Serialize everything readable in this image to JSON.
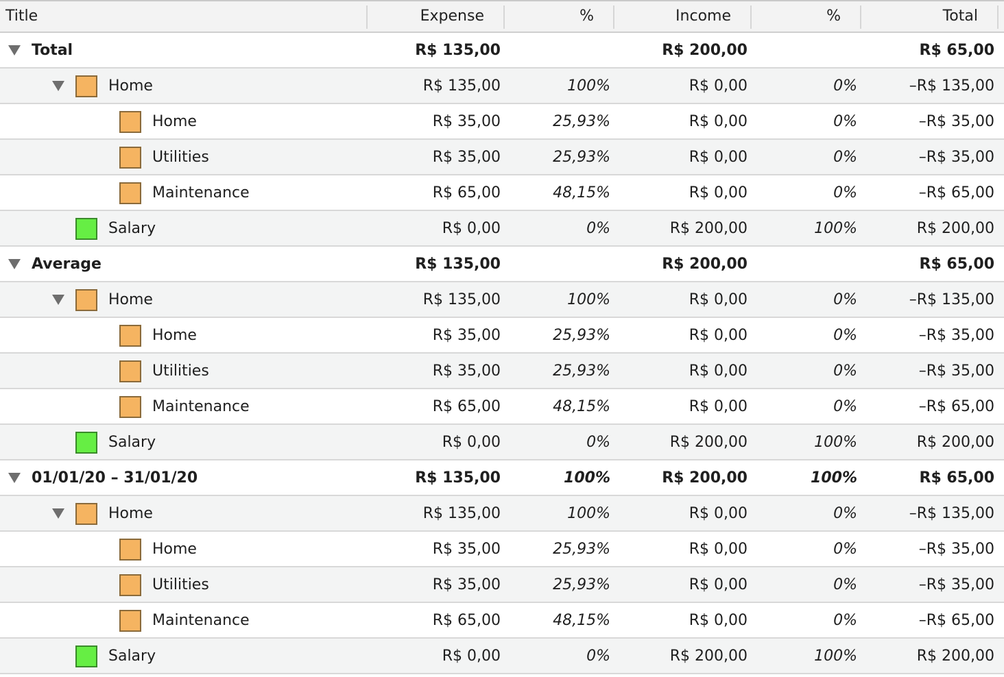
{
  "colors": {
    "home": "#f5b461",
    "salary": "#66ee44"
  },
  "header": {
    "title": "Title",
    "expense": "Expense",
    "expense_pct": "%",
    "income": "Income",
    "income_pct": "%",
    "total": "Total"
  },
  "rows": [
    {
      "level": 0,
      "expandable": true,
      "title": "Total",
      "expense": "R$ 135,00",
      "expense_pct": "",
      "income": "R$ 200,00",
      "income_pct": "",
      "total": "R$ 65,00"
    },
    {
      "level": 1,
      "expandable": true,
      "swatch": "home",
      "title": "Home",
      "expense": "R$ 135,00",
      "expense_pct": "100%",
      "income": "R$ 0,00",
      "income_pct": "0%",
      "total": "–R$ 135,00"
    },
    {
      "level": 2,
      "expandable": false,
      "swatch": "home",
      "title": "Home",
      "expense": "R$ 35,00",
      "expense_pct": "25,93%",
      "income": "R$ 0,00",
      "income_pct": "0%",
      "total": "–R$ 35,00"
    },
    {
      "level": 2,
      "expandable": false,
      "swatch": "home",
      "title": "Utilities",
      "expense": "R$ 35,00",
      "expense_pct": "25,93%",
      "income": "R$ 0,00",
      "income_pct": "0%",
      "total": "–R$ 35,00"
    },
    {
      "level": 2,
      "expandable": false,
      "swatch": "home",
      "title": "Maintenance",
      "expense": "R$ 65,00",
      "expense_pct": "48,15%",
      "income": "R$ 0,00",
      "income_pct": "0%",
      "total": "–R$ 65,00"
    },
    {
      "level": 1,
      "expandable": false,
      "swatch": "salary",
      "title": "Salary",
      "expense": "R$ 0,00",
      "expense_pct": "0%",
      "income": "R$ 200,00",
      "income_pct": "100%",
      "total": "R$ 200,00"
    },
    {
      "level": 0,
      "expandable": true,
      "title": "Average",
      "expense": "R$ 135,00",
      "expense_pct": "",
      "income": "R$ 200,00",
      "income_pct": "",
      "total": "R$ 65,00"
    },
    {
      "level": 1,
      "expandable": true,
      "swatch": "home",
      "title": "Home",
      "expense": "R$ 135,00",
      "expense_pct": "100%",
      "income": "R$ 0,00",
      "income_pct": "0%",
      "total": "–R$ 135,00"
    },
    {
      "level": 2,
      "expandable": false,
      "swatch": "home",
      "title": "Home",
      "expense": "R$ 35,00",
      "expense_pct": "25,93%",
      "income": "R$ 0,00",
      "income_pct": "0%",
      "total": "–R$ 35,00"
    },
    {
      "level": 2,
      "expandable": false,
      "swatch": "home",
      "title": "Utilities",
      "expense": "R$ 35,00",
      "expense_pct": "25,93%",
      "income": "R$ 0,00",
      "income_pct": "0%",
      "total": "–R$ 35,00"
    },
    {
      "level": 2,
      "expandable": false,
      "swatch": "home",
      "title": "Maintenance",
      "expense": "R$ 65,00",
      "expense_pct": "48,15%",
      "income": "R$ 0,00",
      "income_pct": "0%",
      "total": "–R$ 65,00"
    },
    {
      "level": 1,
      "expandable": false,
      "swatch": "salary",
      "title": "Salary",
      "expense": "R$ 0,00",
      "expense_pct": "0%",
      "income": "R$ 200,00",
      "income_pct": "100%",
      "total": "R$ 200,00"
    },
    {
      "level": 0,
      "expandable": true,
      "title": "01/01/20 – 31/01/20",
      "expense": "R$ 135,00",
      "expense_pct": "100%",
      "income": "R$ 200,00",
      "income_pct": "100%",
      "total": "R$ 65,00"
    },
    {
      "level": 1,
      "expandable": true,
      "swatch": "home",
      "title": "Home",
      "expense": "R$ 135,00",
      "expense_pct": "100%",
      "income": "R$ 0,00",
      "income_pct": "0%",
      "total": "–R$ 135,00"
    },
    {
      "level": 2,
      "expandable": false,
      "swatch": "home",
      "title": "Home",
      "expense": "R$ 35,00",
      "expense_pct": "25,93%",
      "income": "R$ 0,00",
      "income_pct": "0%",
      "total": "–R$ 35,00"
    },
    {
      "level": 2,
      "expandable": false,
      "swatch": "home",
      "title": "Utilities",
      "expense": "R$ 35,00",
      "expense_pct": "25,93%",
      "income": "R$ 0,00",
      "income_pct": "0%",
      "total": "–R$ 35,00"
    },
    {
      "level": 2,
      "expandable": false,
      "swatch": "home",
      "title": "Maintenance",
      "expense": "R$ 65,00",
      "expense_pct": "48,15%",
      "income": "R$ 0,00",
      "income_pct": "0%",
      "total": "–R$ 65,00"
    },
    {
      "level": 1,
      "expandable": false,
      "swatch": "salary",
      "title": "Salary",
      "expense": "R$ 0,00",
      "expense_pct": "0%",
      "income": "R$ 200,00",
      "income_pct": "100%",
      "total": "R$ 200,00"
    }
  ]
}
